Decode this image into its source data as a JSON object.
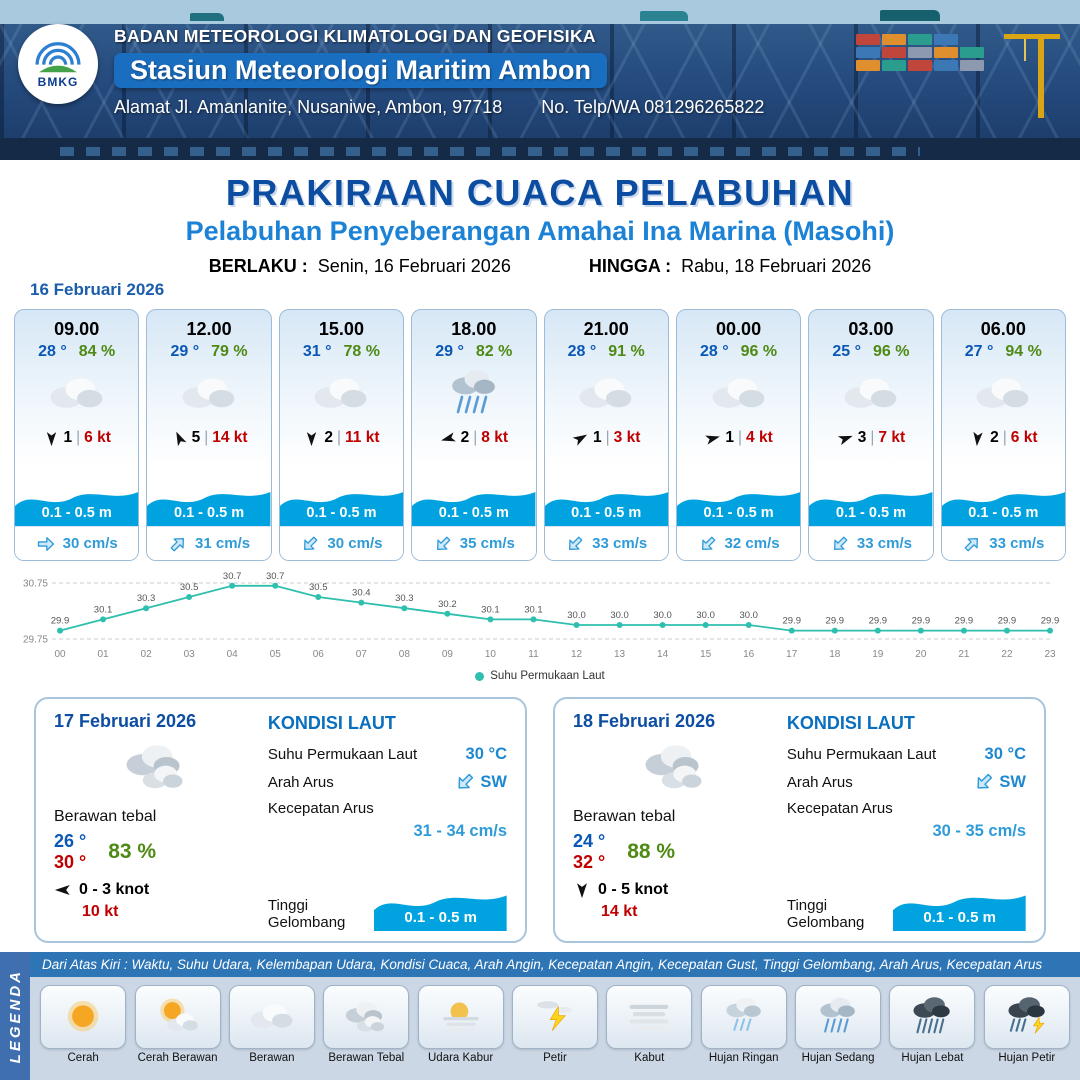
{
  "ui": {
    "sep": "|"
  },
  "header": {
    "logo_text": "BMKG",
    "agency": "BADAN METEOROLOGI KLIMATOLOGI DAN GEOFISIKA",
    "station": "Stasiun Meteorologi Maritim Ambon",
    "address": "Alamat Jl. Amanlanite, Nusaniwe, Ambon, 97718",
    "phone": "No. Telp/WA  081296265822"
  },
  "title": {
    "main": "PRAKIRAAN CUACA PELABUHAN",
    "subtitle": "Pelabuhan Penyeberangan Amahai Ina Marina (Masohi)",
    "berlaku_label": "BERLAKU :",
    "berlaku_value": "Senin, 16 Februari 2026",
    "hingga_label": "HINGGA :",
    "hingga_value": "Rabu, 18 Februari 2026"
  },
  "forecast_date": "16 Februari 2026",
  "forecast_cards": [
    {
      "time": "09.00",
      "temp": "28 °",
      "humidity": "84 %",
      "icon": "berawan",
      "wind_dir_deg": 180,
      "gust": "1",
      "speed": "6 kt",
      "wave": "0.1 - 0.5 m",
      "current_dir_deg": 0,
      "current": "30 cm/s"
    },
    {
      "time": "12.00",
      "temp": "29 °",
      "humidity": "79 %",
      "icon": "berawan",
      "wind_dir_deg": 335,
      "gust": "5",
      "speed": "14 kt",
      "wave": "0.1 - 0.5 m",
      "current_dir_deg": -45,
      "current": "31 cm/s"
    },
    {
      "time": "15.00",
      "temp": "31 °",
      "humidity": "78 %",
      "icon": "berawan",
      "wind_dir_deg": 180,
      "gust": "2",
      "speed": "11 kt",
      "wave": "0.1 - 0.5 m",
      "current_dir_deg": 135,
      "current": "30 cm/s"
    },
    {
      "time": "18.00",
      "temp": "29 °",
      "humidity": "82 %",
      "icon": "hujan-sedang",
      "wind_dir_deg": 255,
      "gust": "2",
      "speed": "8 kt",
      "wave": "0.1 - 0.5 m",
      "current_dir_deg": 135,
      "current": "35 cm/s"
    },
    {
      "time": "21.00",
      "temp": "28 °",
      "humidity": "91 %",
      "icon": "berawan",
      "wind_dir_deg": 60,
      "gust": "1",
      "speed": "3 kt",
      "wave": "0.1 - 0.5 m",
      "current_dir_deg": 135,
      "current": "33 cm/s"
    },
    {
      "time": "00.00",
      "temp": "28 °",
      "humidity": "96 %",
      "icon": "berawan",
      "wind_dir_deg": 75,
      "gust": "1",
      "speed": "4 kt",
      "wave": "0.1 - 0.5 m",
      "current_dir_deg": 135,
      "current": "32 cm/s"
    },
    {
      "time": "03.00",
      "temp": "25 °",
      "humidity": "96 %",
      "icon": "berawan",
      "wind_dir_deg": 70,
      "gust": "3",
      "speed": "7 kt",
      "wave": "0.1 - 0.5 m",
      "current_dir_deg": 135,
      "current": "33 cm/s"
    },
    {
      "time": "06.00",
      "temp": "27 °",
      "humidity": "94 %",
      "icon": "berawan",
      "wind_dir_deg": 185,
      "gust": "2",
      "speed": "6 kt",
      "wave": "0.1 - 0.5 m",
      "current_dir_deg": -45,
      "current": "33 cm/s"
    }
  ],
  "chart_data": {
    "type": "line",
    "title": "",
    "legend": "Suhu Permukaan Laut",
    "x": [
      "00",
      "01",
      "02",
      "03",
      "04",
      "05",
      "06",
      "07",
      "08",
      "09",
      "10",
      "11",
      "12",
      "13",
      "14",
      "15",
      "16",
      "17",
      "18",
      "19",
      "20",
      "21",
      "22",
      "23"
    ],
    "values": [
      29.9,
      30.1,
      30.3,
      30.5,
      30.7,
      30.7,
      30.5,
      30.4,
      30.3,
      30.2,
      30.1,
      30.1,
      30.0,
      30.0,
      30.0,
      30.0,
      30.0,
      29.9,
      29.9,
      29.9,
      29.9,
      29.9,
      29.9,
      29.9
    ],
    "ylim": [
      29.75,
      30.75
    ],
    "yticks": [
      "30.75",
      "29.75"
    ],
    "grid": "dashed",
    "legend_position": "bottom",
    "line_color": "#2fbfae"
  },
  "sea": {
    "title": "KONDISI LAUT",
    "sst_label": "Suhu Permukaan Laut",
    "dir_label": "Arah Arus",
    "speed_label": "Kecepatan Arus",
    "wave_label": "Tinggi Gelombang"
  },
  "daily": [
    {
      "date": "17 Februari 2026",
      "icon": "berawan-tebal",
      "condition": "Berawan tebal",
      "temp_min": "26 °",
      "temp_max": "30 °",
      "humidity": "83 %",
      "wind_dir_deg": 270,
      "wind_range": "0  - 3 knot",
      "gust": "10 kt",
      "sst": "30 °C",
      "current_dir": "SW",
      "current_dir_deg": 135,
      "current_speed": "31 - 34 cm/s",
      "wave": "0.1 - 0.5 m"
    },
    {
      "date": "18 Februari 2026",
      "icon": "berawan-tebal",
      "condition": "Berawan tebal",
      "temp_min": "24 °",
      "temp_max": "32 °",
      "humidity": "88 %",
      "wind_dir_deg": 180,
      "wind_range": "0  - 5 knot",
      "gust": "14 kt",
      "sst": "30 °C",
      "current_dir": "SW",
      "current_dir_deg": 135,
      "current_speed": "30 - 35 cm/s",
      "wave": "0.1 - 0.5 m"
    }
  ],
  "legend": {
    "sidebar": "LEGENDA",
    "strip": "Dari Atas Kiri : Waktu, Suhu Udara, Kelembapan Udara, Kondisi Cuaca, Arah Angin, Kecepatan Angin, Kecepatan Gust, Tinggi Gelombang, Arah Arus, Kecepatan Arus",
    "items": [
      {
        "label": "Cerah",
        "icon": "cerah"
      },
      {
        "label": "Cerah Berawan",
        "icon": "cerah-berawan"
      },
      {
        "label": "Berawan",
        "icon": "berawan"
      },
      {
        "label": "Berawan Tebal",
        "icon": "berawan-tebal"
      },
      {
        "label": "Udara Kabur",
        "icon": "udara-kabur"
      },
      {
        "label": "Petir",
        "icon": "petir"
      },
      {
        "label": "Kabut",
        "icon": "kabut"
      },
      {
        "label": "Hujan Ringan",
        "icon": "hujan-ringan"
      },
      {
        "label": "Hujan Sedang",
        "icon": "hujan-sedang"
      },
      {
        "label": "Hujan Lebat",
        "icon": "hujan-lebat"
      },
      {
        "label": "Hujan Petir",
        "icon": "hujan-petir"
      }
    ]
  }
}
